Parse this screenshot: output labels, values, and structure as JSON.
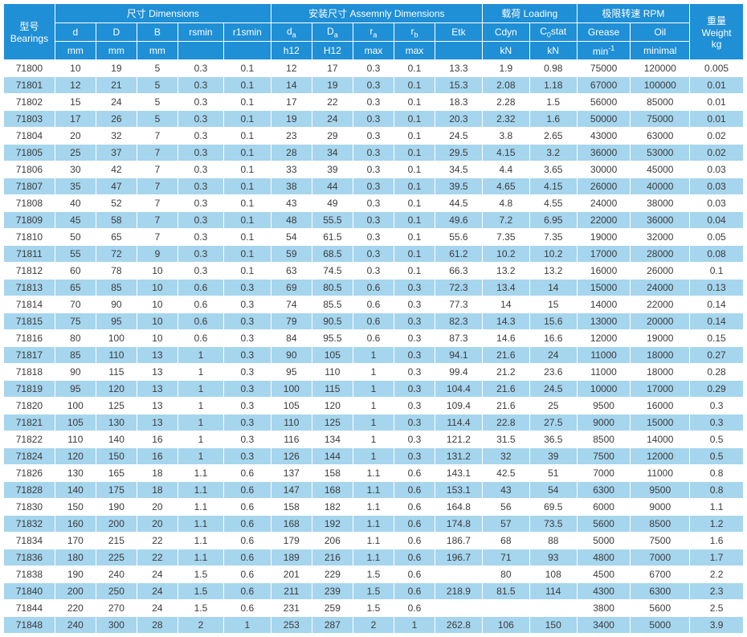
{
  "colors": {
    "header_bg": "#1f8fd6",
    "header_fg": "#ffffff",
    "row_even_bg": "#ffffff",
    "row_odd_bg": "#a6d5ee",
    "cell_fg": "#3b3b3b",
    "border": "#ffffff"
  },
  "header": {
    "bearings_l1": "型号",
    "bearings_l2": "Bearings",
    "dimensions": "尺寸 Dimensions",
    "assembly": "安装尺寸 Assemnly Dimensions",
    "loading": "载荷 Loading",
    "rpm": "极限转速 RPM",
    "weight_l1": "重量",
    "weight_l2": "Weight",
    "d": "d",
    "D": "D",
    "B": "B",
    "rsmin": "rsmin",
    "r1smin": "r1smin",
    "da": "d",
    "Da": "D",
    "ra": "r",
    "rb": "r",
    "Etk": "Etk",
    "Cdyn": "Cdyn",
    "C0stat": "C",
    "stat_suffix": "stat",
    "Grease": "Grease",
    "Oil": "Oil",
    "mm": "mm",
    "h12": "h12",
    "H12": "H12",
    "max": "max",
    "kN": "kN",
    "min1": "min",
    "minimal": "minimal",
    "kg": "kg"
  },
  "col_widths_pct": [
    6.5,
    5.2,
    5.2,
    5.2,
    5.8,
    6.0,
    5.2,
    5.2,
    5.2,
    5.2,
    6.0,
    6.0,
    6.0,
    6.8,
    7.5,
    6.8
  ],
  "columns": [
    "Bearings",
    "d",
    "D",
    "B",
    "rsmin",
    "r1smin",
    "da",
    "Da",
    "ra",
    "rb",
    "Etk",
    "Cdyn",
    "C0stat",
    "Grease",
    "Oil",
    "Weight"
  ],
  "rows": [
    [
      "71800",
      "10",
      "19",
      "5",
      "0.3",
      "0.1",
      "12",
      "17",
      "0.3",
      "0.1",
      "13.3",
      "1.9",
      "0.98",
      "75000",
      "120000",
      "0.005"
    ],
    [
      "71801",
      "12",
      "21",
      "5",
      "0.3",
      "0.1",
      "14",
      "19",
      "0.3",
      "0.1",
      "15.3",
      "2.08",
      "1.18",
      "67000",
      "100000",
      "0.01"
    ],
    [
      "71802",
      "15",
      "24",
      "5",
      "0.3",
      "0.1",
      "17",
      "22",
      "0.3",
      "0.1",
      "18.3",
      "2.28",
      "1.5",
      "56000",
      "85000",
      "0.01"
    ],
    [
      "71803",
      "17",
      "26",
      "5",
      "0.3",
      "0.1",
      "19",
      "24",
      "0.3",
      "0.1",
      "20.3",
      "2.32",
      "1.6",
      "50000",
      "75000",
      "0.01"
    ],
    [
      "71804",
      "20",
      "32",
      "7",
      "0.3",
      "0.1",
      "23",
      "29",
      "0.3",
      "0.1",
      "24.5",
      "3.8",
      "2.65",
      "43000",
      "63000",
      "0.02"
    ],
    [
      "71805",
      "25",
      "37",
      "7",
      "0.3",
      "0.1",
      "28",
      "34",
      "0.3",
      "0.1",
      "29.5",
      "4.15",
      "3.2",
      "36000",
      "53000",
      "0.02"
    ],
    [
      "71806",
      "30",
      "42",
      "7",
      "0.3",
      "0.1",
      "33",
      "39",
      "0.3",
      "0.1",
      "34.5",
      "4.4",
      "3.65",
      "30000",
      "45000",
      "0.03"
    ],
    [
      "71807",
      "35",
      "47",
      "7",
      "0.3",
      "0.1",
      "38",
      "44",
      "0.3",
      "0.1",
      "39.5",
      "4.65",
      "4.15",
      "26000",
      "40000",
      "0.03"
    ],
    [
      "71808",
      "40",
      "52",
      "7",
      "0.3",
      "0.1",
      "43",
      "49",
      "0.3",
      "0.1",
      "44.5",
      "4.8",
      "4.55",
      "24000",
      "38000",
      "0.03"
    ],
    [
      "71809",
      "45",
      "58",
      "7",
      "0.3",
      "0.1",
      "48",
      "55.5",
      "0.3",
      "0.1",
      "49.6",
      "7.2",
      "6.95",
      "22000",
      "36000",
      "0.04"
    ],
    [
      "71810",
      "50",
      "65",
      "7",
      "0.3",
      "0.1",
      "54",
      "61.5",
      "0.3",
      "0.1",
      "55.6",
      "7.35",
      "7.35",
      "19000",
      "32000",
      "0.05"
    ],
    [
      "71811",
      "55",
      "72",
      "9",
      "0.3",
      "0.1",
      "59",
      "68.5",
      "0.3",
      "0.1",
      "61.2",
      "10.2",
      "10.2",
      "17000",
      "28000",
      "0.08"
    ],
    [
      "71812",
      "60",
      "78",
      "10",
      "0.3",
      "0.1",
      "63",
      "74.5",
      "0.3",
      "0.1",
      "66.3",
      "13.2",
      "13.2",
      "16000",
      "26000",
      "0.1"
    ],
    [
      "71813",
      "65",
      "85",
      "10",
      "0.6",
      "0.3",
      "69",
      "80.5",
      "0.6",
      "0.3",
      "72.3",
      "13.4",
      "14",
      "15000",
      "24000",
      "0.13"
    ],
    [
      "71814",
      "70",
      "90",
      "10",
      "0.6",
      "0.3",
      "74",
      "85.5",
      "0.6",
      "0.3",
      "77.3",
      "14",
      "15",
      "14000",
      "22000",
      "0.14"
    ],
    [
      "71815",
      "75",
      "95",
      "10",
      "0.6",
      "0.3",
      "79",
      "90.5",
      "0.6",
      "0.3",
      "82.3",
      "14.3",
      "15.6",
      "13000",
      "20000",
      "0.14"
    ],
    [
      "71816",
      "80",
      "100",
      "10",
      "0.6",
      "0.3",
      "84",
      "95.5",
      "0.6",
      "0.3",
      "87.3",
      "14.6",
      "16.6",
      "12000",
      "19000",
      "0.15"
    ],
    [
      "71817",
      "85",
      "110",
      "13",
      "1",
      "0.3",
      "90",
      "105",
      "1",
      "0.3",
      "94.1",
      "21.6",
      "24",
      "11000",
      "18000",
      "0.27"
    ],
    [
      "71818",
      "90",
      "115",
      "13",
      "1",
      "0.3",
      "95",
      "110",
      "1",
      "0.3",
      "99.4",
      "21.2",
      "23.6",
      "11000",
      "18000",
      "0.28"
    ],
    [
      "71819",
      "95",
      "120",
      "13",
      "1",
      "0.3",
      "100",
      "115",
      "1",
      "0.3",
      "104.4",
      "21.6",
      "24.5",
      "10000",
      "17000",
      "0.29"
    ],
    [
      "71820",
      "100",
      "125",
      "13",
      "1",
      "0.3",
      "105",
      "120",
      "1",
      "0.3",
      "109.4",
      "21.6",
      "25",
      "9500",
      "16000",
      "0.3"
    ],
    [
      "71821",
      "105",
      "130",
      "13",
      "1",
      "0.3",
      "110",
      "125",
      "1",
      "0.3",
      "114.4",
      "22.8",
      "27.5",
      "9000",
      "15000",
      "0.3"
    ],
    [
      "71822",
      "110",
      "140",
      "16",
      "1",
      "0.3",
      "116",
      "134",
      "1",
      "0.3",
      "121.2",
      "31.5",
      "36.5",
      "8500",
      "14000",
      "0.5"
    ],
    [
      "71824",
      "120",
      "150",
      "16",
      "1",
      "0.3",
      "126",
      "144",
      "1",
      "0.3",
      "131.2",
      "32",
      "39",
      "7500",
      "12000",
      "0.5"
    ],
    [
      "71826",
      "130",
      "165",
      "18",
      "1.1",
      "0.6",
      "137",
      "158",
      "1.1",
      "0.6",
      "143.1",
      "42.5",
      "51",
      "7000",
      "11000",
      "0.8"
    ],
    [
      "71828",
      "140",
      "175",
      "18",
      "1.1",
      "0.6",
      "147",
      "168",
      "1.1",
      "0.6",
      "153.1",
      "43",
      "54",
      "6300",
      "9500",
      "0.8"
    ],
    [
      "71830",
      "150",
      "190",
      "20",
      "1.1",
      "0.6",
      "158",
      "182",
      "1.1",
      "0.6",
      "164.8",
      "56",
      "69.5",
      "6000",
      "9000",
      "1.1"
    ],
    [
      "71832",
      "160",
      "200",
      "20",
      "1.1",
      "0.6",
      "168",
      "192",
      "1.1",
      "0.6",
      "174.8",
      "57",
      "73.5",
      "5600",
      "8500",
      "1.2"
    ],
    [
      "71834",
      "170",
      "215",
      "22",
      "1.1",
      "0.6",
      "179",
      "206",
      "1.1",
      "0.6",
      "186.7",
      "68",
      "88",
      "5000",
      "7500",
      "1.6"
    ],
    [
      "71836",
      "180",
      "225",
      "22",
      "1.1",
      "0.6",
      "189",
      "216",
      "1.1",
      "0.6",
      "196.7",
      "71",
      "93",
      "4800",
      "7000",
      "1.7"
    ],
    [
      "71838",
      "190",
      "240",
      "24",
      "1.5",
      "0.6",
      "201",
      "229",
      "1.5",
      "0.6",
      "",
      "80",
      "108",
      "4500",
      "6700",
      "2.2"
    ],
    [
      "71840",
      "200",
      "250",
      "24",
      "1.5",
      "0.6",
      "211",
      "239",
      "1.5",
      "0.6",
      "218.9",
      "81.5",
      "114",
      "4300",
      "6300",
      "2.3"
    ],
    [
      "71844",
      "220",
      "270",
      "24",
      "1.5",
      "0.6",
      "231",
      "259",
      "1.5",
      "0.6",
      "",
      "",
      "",
      "3800",
      "5600",
      "2.5"
    ],
    [
      "71848",
      "240",
      "300",
      "28",
      "2",
      "1",
      "253",
      "287",
      "2",
      "1",
      "262.8",
      "106",
      "150",
      "3400",
      "5000",
      "3.9"
    ]
  ]
}
